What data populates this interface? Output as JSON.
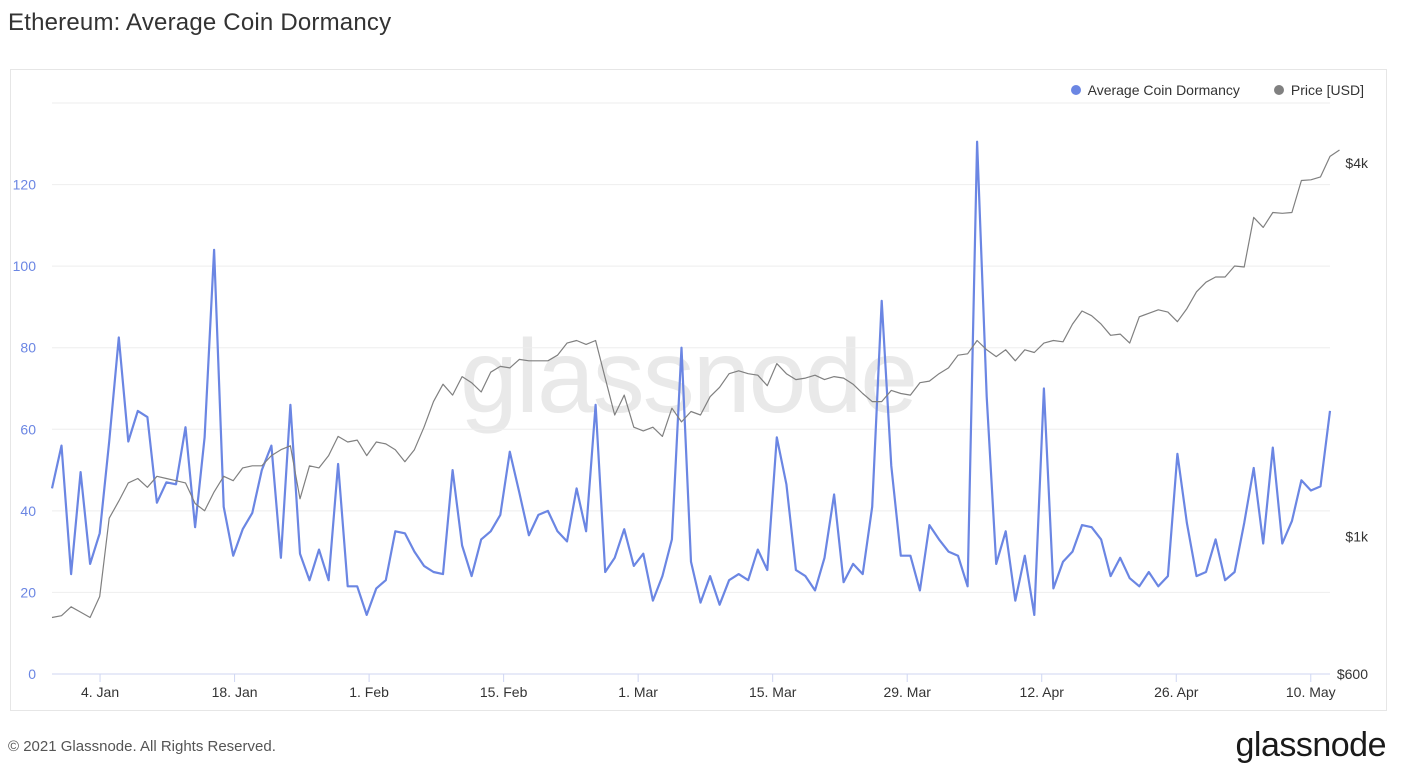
{
  "title": "Ethereum: Average Coin Dormancy",
  "watermark": "glassnode",
  "footer": {
    "copyright": "© 2021 Glassnode. All Rights Reserved.",
    "brand": "glassnode"
  },
  "legend": [
    {
      "label": "Average Coin Dormancy",
      "color": "#6b86e3"
    },
    {
      "label": "Price [USD]",
      "color": "#808080"
    }
  ],
  "chart_data": {
    "type": "line",
    "title": "Ethereum: Average Coin Dormancy",
    "x_start": "2020-12-30",
    "x_end": "2021-05-12",
    "x_ticks": [
      {
        "date": "2021-01-04",
        "label": "4. Jan"
      },
      {
        "date": "2021-01-18",
        "label": "18. Jan"
      },
      {
        "date": "2021-02-01",
        "label": "1. Feb"
      },
      {
        "date": "2021-02-15",
        "label": "15. Feb"
      },
      {
        "date": "2021-03-01",
        "label": "1. Mar"
      },
      {
        "date": "2021-03-15",
        "label": "15. Mar"
      },
      {
        "date": "2021-03-29",
        "label": "29. Mar"
      },
      {
        "date": "2021-04-12",
        "label": "12. Apr"
      },
      {
        "date": "2021-04-26",
        "label": "26. Apr"
      },
      {
        "date": "2021-05-10",
        "label": "10. May"
      }
    ],
    "y_left": {
      "ylim": [
        0,
        140
      ],
      "ticks": [
        0,
        20,
        40,
        60,
        80,
        100,
        120
      ]
    },
    "y_right": {
      "scale": "log",
      "ylim": [
        600,
        5000
      ],
      "ticks": [
        {
          "value": 600,
          "label": "$600"
        },
        {
          "value": 1000,
          "label": "$1k"
        },
        {
          "value": 4000,
          "label": "$4k"
        }
      ]
    },
    "grid": true,
    "legend_position": "top-right",
    "series": [
      {
        "name": "Average Coin Dormancy",
        "color": "#6b86e3",
        "axis": "left",
        "values": [
          45.5,
          56,
          24.5,
          49.5,
          27,
          34.5,
          57,
          82.5,
          57,
          64.5,
          63,
          42,
          47,
          46.5,
          60.5,
          36,
          58,
          104,
          41,
          29,
          35.5,
          39.5,
          50,
          56,
          28.5,
          66,
          29.5,
          23,
          30.5,
          23,
          51.5,
          21.5,
          21.5,
          14.5,
          21,
          23,
          35,
          34.5,
          30,
          26.5,
          25,
          24.5,
          50,
          31.5,
          24,
          33,
          35,
          39,
          54.5,
          44.5,
          34,
          39,
          40,
          35,
          32.5,
          45.5,
          35,
          66,
          25,
          28.5,
          35.5,
          26.5,
          29.5,
          18,
          24,
          33,
          80,
          27.5,
          17.5,
          24,
          17,
          23,
          24.5,
          23,
          30.5,
          25.5,
          58,
          46.5,
          25.5,
          24,
          20.5,
          28.5,
          44,
          22.5,
          27,
          24.5,
          41,
          91.5,
          51,
          29,
          29,
          20.5,
          36.5,
          33,
          30,
          29,
          21.5,
          130.5,
          68,
          27,
          35,
          18,
          29,
          14.5,
          70,
          21,
          27.5,
          30,
          36.5,
          36,
          33,
          24,
          28.5,
          23.5,
          21.5,
          25,
          21.5,
          24,
          54,
          37,
          24,
          25,
          33,
          23,
          25,
          37,
          50.5,
          32,
          55.5,
          32,
          37.5,
          47.5,
          45,
          46,
          64.5
        ]
      },
      {
        "name": "Price [USD]",
        "color": "#808080",
        "axis": "right",
        "values": [
          740,
          745,
          770,
          755,
          740,
          800,
          1070,
          1140,
          1220,
          1240,
          1200,
          1250,
          1240,
          1230,
          1220,
          1130,
          1100,
          1180,
          1250,
          1230,
          1290,
          1300,
          1300,
          1350,
          1380,
          1400,
          1150,
          1300,
          1290,
          1350,
          1450,
          1420,
          1430,
          1350,
          1420,
          1410,
          1380,
          1320,
          1380,
          1500,
          1650,
          1760,
          1690,
          1810,
          1770,
          1710,
          1840,
          1880,
          1870,
          1930,
          1920,
          1920,
          1920,
          1960,
          2050,
          2070,
          2040,
          2070,
          1800,
          1570,
          1690,
          1500,
          1480,
          1500,
          1450,
          1610,
          1530,
          1590,
          1570,
          1680,
          1740,
          1830,
          1850,
          1830,
          1820,
          1750,
          1900,
          1830,
          1790,
          1800,
          1820,
          1790,
          1810,
          1800,
          1760,
          1700,
          1650,
          1650,
          1720,
          1700,
          1690,
          1770,
          1780,
          1830,
          1870,
          1960,
          1970,
          2070,
          2000,
          1950,
          2000,
          1920,
          2000,
          1980,
          2050,
          2070,
          2060,
          2200,
          2310,
          2270,
          2200,
          2110,
          2120,
          2050,
          2260,
          2290,
          2320,
          2300,
          2220,
          2330,
          2480,
          2570,
          2620,
          2620,
          2730,
          2720,
          3270,
          3150,
          3330,
          3320,
          3330,
          3750,
          3760,
          3800,
          4100,
          4200
        ]
      }
    ]
  }
}
